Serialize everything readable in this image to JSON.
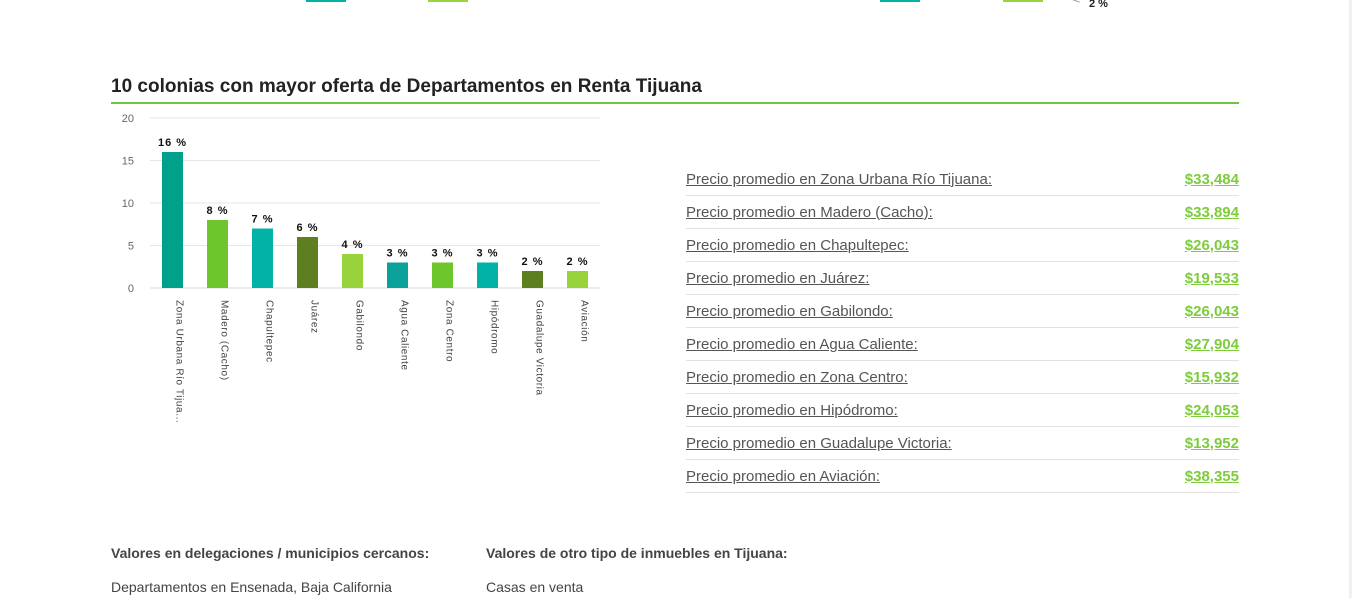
{
  "top_fragment": {
    "pct_label": "2 %"
  },
  "section": {
    "title": "10 colonias con mayor oferta de Departamentos en Renta Tijuana"
  },
  "chart_data": {
    "type": "bar",
    "categories": [
      "Zona Urbana Río Tijua...",
      "Madero (Cacho)",
      "Chapultepec",
      "Juárez",
      "Gabilondo",
      "Agua Caliente",
      "Zona Centro",
      "Hipódromo",
      "Guadalupe Victoria",
      "Aviación"
    ],
    "values": [
      16,
      8,
      7,
      6,
      4,
      3,
      3,
      3,
      2,
      2
    ],
    "data_labels": [
      "16 %",
      "8 %",
      "7 %",
      "6 %",
      "4 %",
      "3 %",
      "3 %",
      "3 %",
      "2 %",
      "2 %"
    ],
    "colors": [
      "#00a08a",
      "#6cc62c",
      "#00b3a6",
      "#5d7f1f",
      "#99d33b",
      "#0aa19b",
      "#6cc62c",
      "#00b3a6",
      "#5d7f1f",
      "#99d33b"
    ],
    "yticks": [
      "0",
      "5",
      "10",
      "15",
      "20"
    ],
    "ylim": [
      0,
      20
    ],
    "grid": true,
    "title": "",
    "xlabel": "",
    "ylabel": ""
  },
  "prices": [
    {
      "label": "Precio promedio en Zona Urbana Río Tijuana:",
      "value": "$33,484"
    },
    {
      "label": "Precio promedio en Madero (Cacho):",
      "value": "$33,894"
    },
    {
      "label": "Precio promedio en Chapultepec:",
      "value": "$26,043"
    },
    {
      "label": "Precio promedio en Juárez:",
      "value": "$19,533"
    },
    {
      "label": "Precio promedio en Gabilondo:",
      "value": "$26,043"
    },
    {
      "label": "Precio promedio en Agua Caliente:",
      "value": "$27,904"
    },
    {
      "label": "Precio promedio en Zona Centro:",
      "value": "$15,932"
    },
    {
      "label": "Precio promedio en Hipódromo:",
      "value": "$24,053"
    },
    {
      "label": "Precio promedio en Guadalupe Victoria:",
      "value": "$13,952"
    },
    {
      "label": "Precio promedio en Aviación:",
      "value": "$38,355"
    }
  ],
  "bottom": {
    "nearby_heading": "Valores en delegaciones / municipios cercanos:",
    "nearby_link": "Departamentos en Ensenada, Baja California",
    "other_heading": "Valores de otro tipo de inmuebles en Tijuana:",
    "other_link": "Casas en venta"
  }
}
